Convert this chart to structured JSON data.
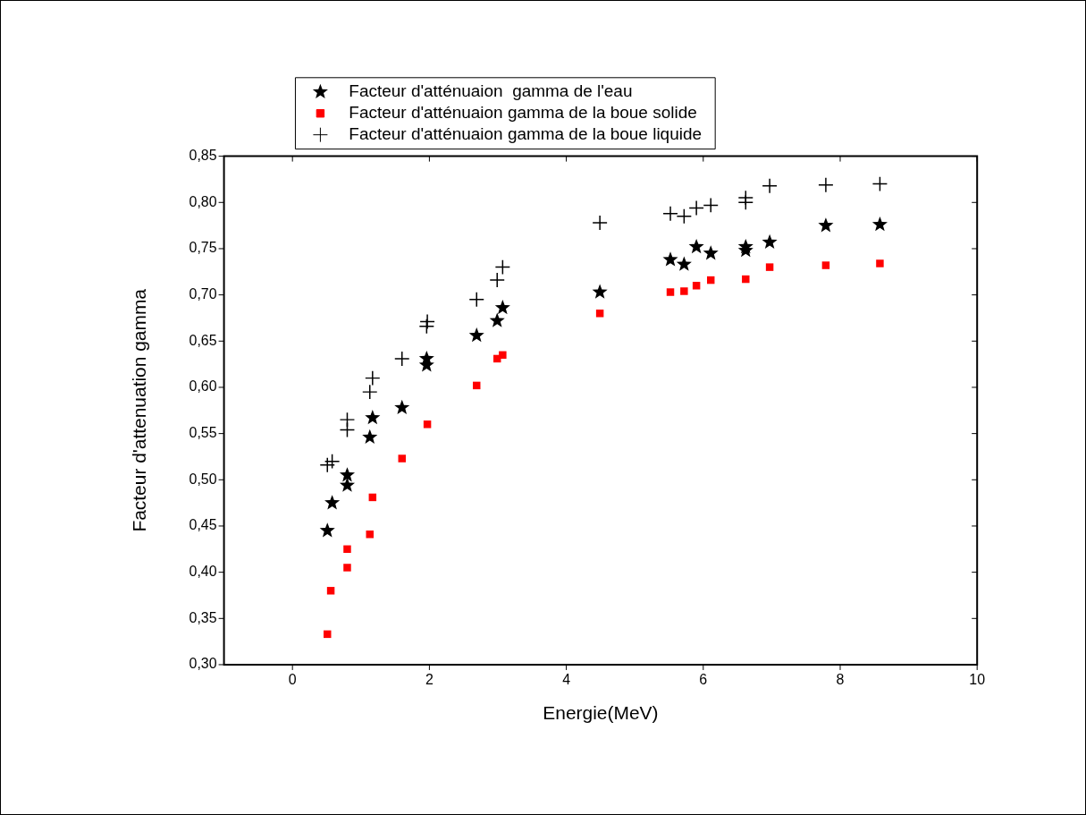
{
  "chart_data": {
    "type": "scatter",
    "xlabel": "Energie(MeV)",
    "ylabel": "Facteur d'attenuation gamma",
    "legend": "top",
    "grid": false,
    "xlim": [
      -1,
      10
    ],
    "xticks": [
      0,
      2,
      4,
      6,
      8,
      10
    ],
    "ylim": [
      0.3,
      0.85
    ],
    "yticks": [
      {
        "value": 0.3,
        "label": "0,30"
      },
      {
        "value": 0.35,
        "label": "0,35"
      },
      {
        "value": 0.4,
        "label": "0,40"
      },
      {
        "value": 0.45,
        "label": "0,45"
      },
      {
        "value": 0.5,
        "label": "0,50"
      },
      {
        "value": 0.55,
        "label": "0,55"
      },
      {
        "value": 0.6,
        "label": "0,60"
      },
      {
        "value": 0.65,
        "label": "0,65"
      },
      {
        "value": 0.7,
        "label": "0,70"
      },
      {
        "value": 0.75,
        "label": "0,75"
      },
      {
        "value": 0.8,
        "label": "0,80"
      },
      {
        "value": 0.85,
        "label": "0,85"
      }
    ],
    "series": [
      {
        "name": "Facteur d'atténuaion  gamma de l'eau",
        "color": "#000000",
        "marker": "star",
        "x": [
          0.51,
          0.58,
          0.8,
          0.8,
          1.13,
          1.17,
          1.6,
          1.96,
          1.96,
          2.69,
          2.99,
          3.07,
          4.49,
          5.52,
          5.72,
          5.9,
          6.11,
          6.62,
          6.62,
          6.97,
          7.79,
          8.58
        ],
        "values": [
          0.445,
          0.475,
          0.505,
          0.494,
          0.546,
          0.567,
          0.578,
          0.631,
          0.624,
          0.656,
          0.672,
          0.686,
          0.703,
          0.738,
          0.733,
          0.752,
          0.745,
          0.752,
          0.748,
          0.757,
          0.775,
          0.776
        ]
      },
      {
        "name": "Facteur d'atténuaion gamma de la boue solide",
        "color": "#ff0000",
        "marker": "square",
        "x": [
          0.51,
          0.56,
          0.8,
          0.8,
          1.13,
          1.17,
          1.6,
          1.96,
          1.97,
          2.69,
          2.99,
          3.07,
          4.49,
          5.52,
          5.72,
          5.9,
          6.11,
          6.62,
          6.97,
          7.79,
          8.58
        ],
        "values": [
          0.333,
          0.38,
          0.405,
          0.425,
          0.441,
          0.481,
          0.523,
          null,
          0.56,
          0.602,
          0.631,
          0.635,
          0.68,
          0.703,
          0.704,
          0.71,
          0.716,
          0.717,
          0.73,
          0.732,
          0.734
        ]
      },
      {
        "name": "Facteur d'atténuaion gamma de la boue liquide",
        "color": "#000000",
        "marker": "cross",
        "x": [
          0.51,
          0.58,
          0.8,
          0.8,
          1.13,
          1.17,
          1.6,
          1.96,
          1.97,
          2.69,
          2.99,
          3.07,
          4.49,
          5.52,
          5.72,
          5.9,
          6.11,
          6.62,
          6.62,
          6.97,
          7.79,
          8.58
        ],
        "values": [
          0.516,
          0.52,
          0.554,
          0.565,
          0.595,
          0.61,
          0.631,
          0.666,
          0.671,
          0.695,
          0.716,
          0.73,
          0.778,
          0.788,
          0.785,
          0.794,
          0.797,
          0.8,
          0.805,
          0.818,
          0.819,
          0.82
        ]
      }
    ]
  }
}
